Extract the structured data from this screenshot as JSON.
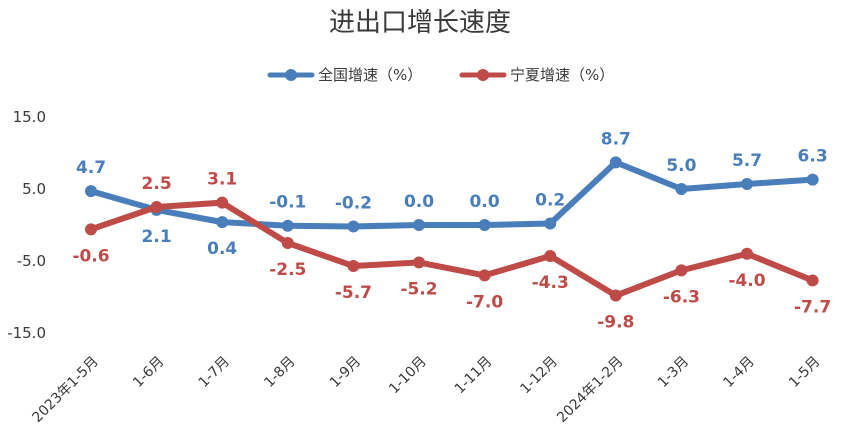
{
  "chart_data": {
    "type": "line",
    "title": "进出口增长速度",
    "categories": [
      "2023年1-5月",
      "1-6月",
      "1-7月",
      "1-8月",
      "1-9月",
      "1-10月",
      "1-11月",
      "1-12月",
      "2024年1-2月",
      "1-3月",
      "1-4月",
      "1-5月"
    ],
    "ylim": [
      -15.0,
      15.0
    ],
    "yticks": [
      15.0,
      5.0,
      -5.0,
      -15.0
    ],
    "ytick_labels": [
      "15.0",
      "5.0",
      "-5.0",
      "-15.0"
    ],
    "grid": false,
    "legend_position": "top",
    "series": [
      {
        "name": "全国增速（%）",
        "color": "#4a7ebb",
        "values": [
          4.7,
          2.1,
          0.4,
          -0.1,
          -0.2,
          0.0,
          0.0,
          0.2,
          8.7,
          5.0,
          5.7,
          6.3
        ],
        "labels": [
          "4.7",
          "2.1",
          "0.4",
          "-0.1",
          "-0.2",
          "0.0",
          "0.0",
          "0.2",
          "8.7",
          "5.0",
          "5.7",
          "6.3"
        ]
      },
      {
        "name": "宁夏增速（%）",
        "color": "#be4b48",
        "values": [
          -0.6,
          2.5,
          3.1,
          -2.5,
          -5.7,
          -5.2,
          -7.0,
          -4.3,
          -9.8,
          -6.3,
          -4.0,
          -7.7
        ],
        "labels": [
          "-0.6",
          "2.5",
          "3.1",
          "-2.5",
          "-5.7",
          "-5.2",
          "-7.0",
          "-4.3",
          "-9.8",
          "-6.3",
          "-4.0",
          "-7.7"
        ]
      }
    ]
  }
}
